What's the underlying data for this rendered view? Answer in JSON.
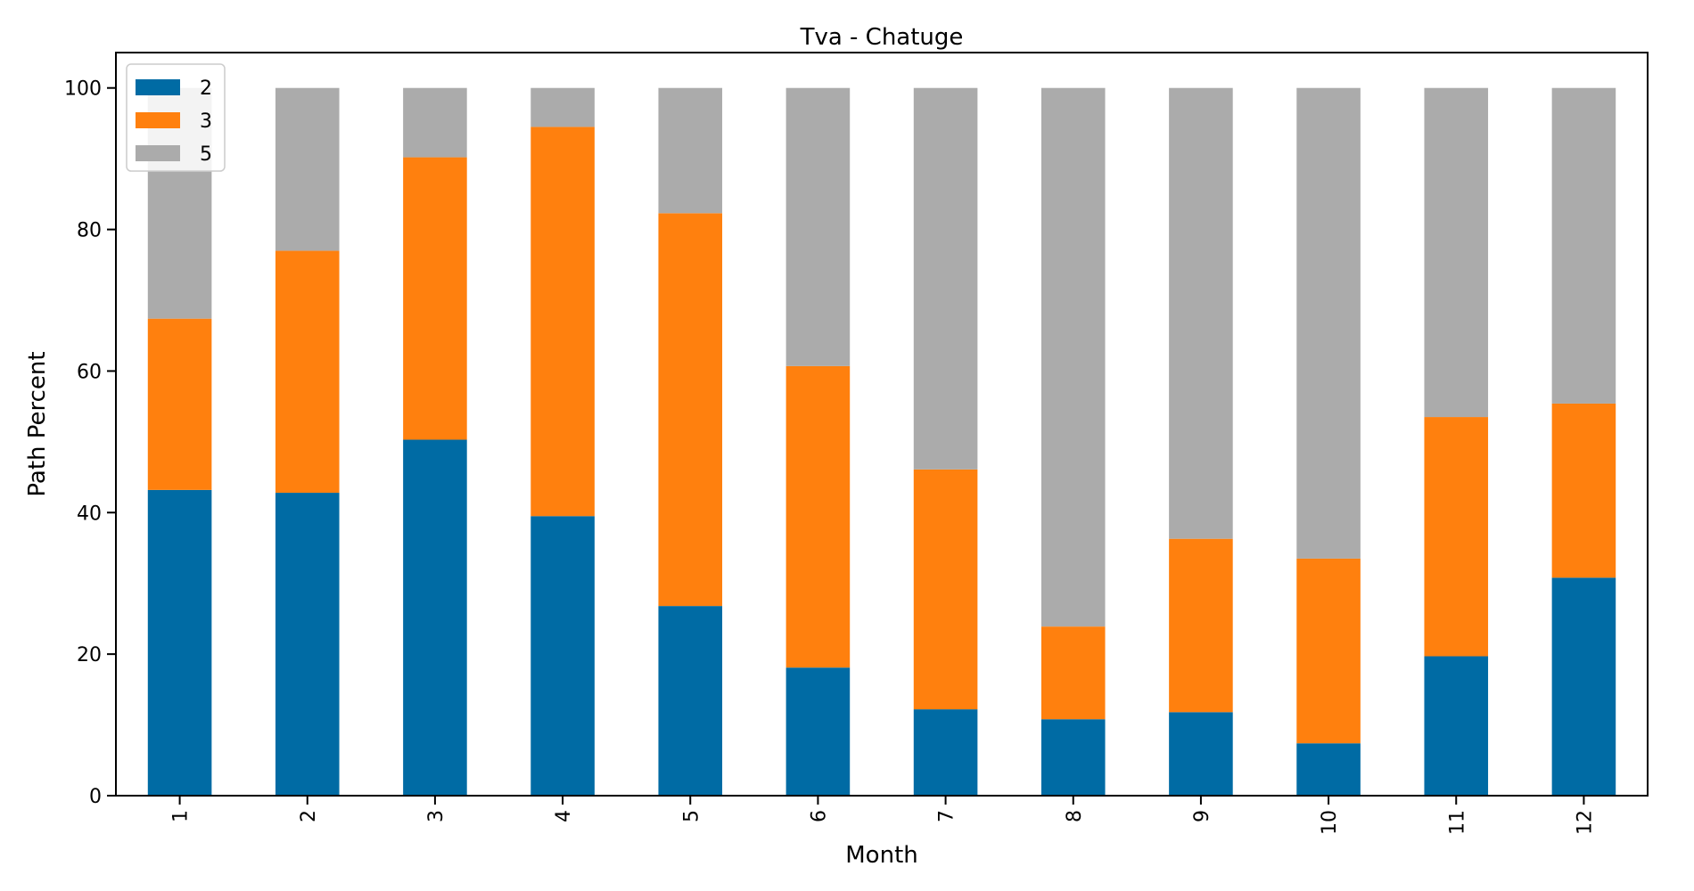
{
  "chart_data": {
    "type": "bar",
    "stacked": true,
    "title": "Tva - Chatuge",
    "xlabel": "Month",
    "ylabel": "Path Percent",
    "ylim": [
      0,
      105
    ],
    "yticks": [
      0,
      20,
      40,
      60,
      80,
      100
    ],
    "categories": [
      "1",
      "2",
      "3",
      "4",
      "5",
      "6",
      "7",
      "8",
      "9",
      "10",
      "11",
      "12"
    ],
    "series": [
      {
        "name": "2",
        "color": "#006ba4",
        "values": [
          43.2,
          42.8,
          50.3,
          39.5,
          26.8,
          18.1,
          12.2,
          10.8,
          11.8,
          7.4,
          19.7,
          30.8
        ]
      },
      {
        "name": "3",
        "color": "#ff800e",
        "values": [
          24.2,
          34.2,
          39.9,
          55.0,
          55.5,
          42.6,
          33.9,
          13.1,
          24.5,
          26.1,
          33.8,
          24.6
        ]
      },
      {
        "name": "5",
        "color": "#ababab",
        "values": [
          32.6,
          23.0,
          9.8,
          5.5,
          17.7,
          39.3,
          53.9,
          76.1,
          63.7,
          66.5,
          46.5,
          44.6
        ]
      }
    ],
    "grid": false,
    "legend_position": "top-left"
  }
}
